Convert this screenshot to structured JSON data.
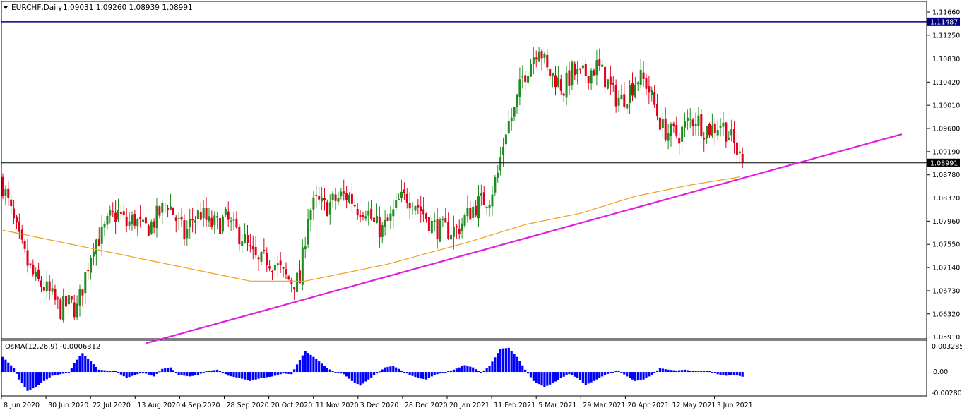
{
  "header": {
    "symbol_label": "EURCHF,Daily",
    "ohlc_label": "1.09031 1.09260 1.08939 1.08991"
  },
  "indicator": {
    "label": "OsMA(12,26,9) -0.0006312",
    "scale_top_label": "0.0032855",
    "scale_zero_label": "0.00",
    "scale_bottom_label": "-0.0028096"
  },
  "colors": {
    "bull_candle": "#1f8c1f",
    "bear_candle": "#e0001b",
    "ma_line": "#f0a020",
    "trendline": "#e020e0",
    "resistance_line": "#000080",
    "current_price_line": "#000000",
    "osma_bars": "#0000ff"
  },
  "chart_data": [
    {
      "type": "candlestick",
      "symbol": "EURCHF",
      "timeframe": "Daily",
      "x_axis_labels": [
        "8 Jun 2020",
        "30 Jun 2020",
        "22 Jul 2020",
        "13 Aug 2020",
        "4 Sep 2020",
        "28 Sep 2020",
        "20 Oct 2020",
        "11 Nov 2020",
        "3 Dec 2020",
        "28 Dec 2020",
        "20 Jan 2021",
        "11 Feb 2021",
        "5 Mar 2021",
        "29 Mar 2021",
        "20 Apr 2021",
        "12 May 2021",
        "3 Jun 2021"
      ],
      "y_axis_labels": [
        "1.11660",
        "1.11250",
        "1.10830",
        "1.10420",
        "1.10010",
        "1.09600",
        "1.09190",
        "1.08780",
        "1.08370",
        "1.07960",
        "1.07550",
        "1.07140",
        "1.06730",
        "1.06320",
        "1.05910"
      ],
      "y_range": [
        1.0591,
        1.1166
      ],
      "current_price": 1.08991,
      "current_price_label": "1.08991",
      "resistance_level": 1.11487,
      "resistance_label": "1.11487",
      "close_path": [
        [
          0,
          1.086
        ],
        [
          3,
          1.081
        ],
        [
          6,
          1.076
        ],
        [
          9,
          1.072
        ],
        [
          12,
          1.069
        ],
        [
          15,
          1.068
        ],
        [
          18,
          1.066
        ],
        [
          21,
          1.064
        ],
        [
          24,
          1.065
        ],
        [
          27,
          1.064
        ],
        [
          30,
          1.07
        ],
        [
          33,
          1.076
        ],
        [
          36,
          1.077
        ],
        [
          39,
          1.08
        ],
        [
          42,
          1.081
        ],
        [
          45,
          1.079
        ],
        [
          48,
          1.08
        ],
        [
          51,
          1.078
        ],
        [
          54,
          1.079
        ],
        [
          57,
          1.081
        ],
        [
          60,
          1.083
        ],
        [
          63,
          1.08
        ],
        [
          66,
          1.077
        ],
        [
          69,
          1.08
        ],
        [
          72,
          1.081
        ],
        [
          75,
          1.079
        ],
        [
          78,
          1.079
        ],
        [
          81,
          1.08
        ],
        [
          84,
          1.078
        ],
        [
          87,
          1.077
        ],
        [
          90,
          1.074
        ],
        [
          93,
          1.072
        ],
        [
          96,
          1.073
        ],
        [
          99,
          1.072
        ],
        [
          102,
          1.07
        ],
        [
          105,
          1.069
        ],
        [
          108,
          1.069
        ],
        [
          111,
          1.081
        ],
        [
          114,
          1.083
        ],
        [
          117,
          1.082
        ],
        [
          120,
          1.083
        ],
        [
          123,
          1.084
        ],
        [
          126,
          1.084
        ],
        [
          129,
          1.082
        ],
        [
          132,
          1.082
        ],
        [
          135,
          1.079
        ],
        [
          138,
          1.078
        ],
        [
          141,
          1.08
        ],
        [
          144,
          1.083
        ],
        [
          147,
          1.084
        ],
        [
          150,
          1.083
        ],
        [
          153,
          1.081
        ],
        [
          156,
          1.079
        ],
        [
          159,
          1.078
        ],
        [
          162,
          1.078
        ],
        [
          165,
          1.078
        ],
        [
          168,
          1.08
        ],
        [
          171,
          1.082
        ],
        [
          174,
          1.083
        ],
        [
          177,
          1.084
        ],
        [
          180,
          1.088
        ],
        [
          183,
          1.096
        ],
        [
          186,
          1.099
        ],
        [
          189,
          1.105
        ],
        [
          192,
          1.108
        ],
        [
          195,
          1.111
        ],
        [
          198,
          1.106
        ],
        [
          201,
          1.105
        ],
        [
          204,
          1.103
        ],
        [
          207,
          1.106
        ],
        [
          210,
          1.105
        ],
        [
          213,
          1.106
        ],
        [
          216,
          1.107
        ],
        [
          219,
          1.105
        ],
        [
          222,
          1.102
        ],
        [
          225,
          1.101
        ],
        [
          228,
          1.103
        ],
        [
          231,
          1.105
        ],
        [
          234,
          1.104
        ],
        [
          237,
          1.1
        ],
        [
          240,
          1.096
        ],
        [
          243,
          1.095
        ],
        [
          246,
          1.095
        ],
        [
          249,
          1.097
        ],
        [
          252,
          1.098
        ],
        [
          255,
          1.096
        ],
        [
          258,
          1.096
        ],
        [
          261,
          1.097
        ],
        [
          264,
          1.095
        ],
        [
          267,
          1.092
        ],
        [
          269,
          1.08991
        ]
      ],
      "moving_average_path": [
        [
          0,
          1.078
        ],
        [
          30,
          1.075
        ],
        [
          60,
          1.072
        ],
        [
          90,
          1.069
        ],
        [
          110,
          1.069
        ],
        [
          140,
          1.072
        ],
        [
          170,
          1.076
        ],
        [
          190,
          1.079
        ],
        [
          210,
          1.081
        ],
        [
          230,
          1.084
        ],
        [
          250,
          1.086
        ],
        [
          269,
          1.0875
        ]
      ],
      "trendline": [
        [
          52,
          1.058
        ],
        [
          327,
          1.095
        ]
      ]
    },
    {
      "type": "bar",
      "name": "OsMA(12,26,9)",
      "value": -0.0006312,
      "y_range": [
        -0.0028096,
        0.0032855
      ],
      "bar_path": [
        [
          0,
          0.002
        ],
        [
          4,
          0.0005
        ],
        [
          6,
          -0.001
        ],
        [
          9,
          -0.0025
        ],
        [
          12,
          -0.002
        ],
        [
          15,
          -0.0012
        ],
        [
          18,
          -0.0005
        ],
        [
          21,
          -0.0003
        ],
        [
          24,
          -0.0001
        ],
        [
          26,
          0.0012
        ],
        [
          29,
          0.0025
        ],
        [
          32,
          0.0014
        ],
        [
          35,
          0.0003
        ],
        [
          38,
          0.0002
        ],
        [
          41,
          0.0001
        ],
        [
          45,
          -0.0008
        ],
        [
          48,
          -0.0004
        ],
        [
          51,
          -0.0001
        ],
        [
          55,
          -0.0006
        ],
        [
          58,
          0.0004
        ],
        [
          61,
          0.0006
        ],
        [
          64,
          -0.0004
        ],
        [
          68,
          -0.0006
        ],
        [
          71,
          -0.0004
        ],
        [
          74,
          0.0001
        ],
        [
          78,
          0.0003
        ],
        [
          82,
          -0.0005
        ],
        [
          86,
          -0.0008
        ],
        [
          90,
          -0.0012
        ],
        [
          94,
          -0.0008
        ],
        [
          98,
          -0.0006
        ],
        [
          102,
          -0.0002
        ],
        [
          105,
          -0.0003
        ],
        [
          107,
          0.001
        ],
        [
          110,
          0.0028
        ],
        [
          113,
          0.002
        ],
        [
          117,
          0.0008
        ],
        [
          120,
          0.0001
        ],
        [
          124,
          -0.0003
        ],
        [
          127,
          -0.0012
        ],
        [
          130,
          -0.0018
        ],
        [
          133,
          -0.001
        ],
        [
          136,
          -0.0002
        ],
        [
          139,
          0.0006
        ],
        [
          142,
          0.0008
        ],
        [
          145,
          0.0002
        ],
        [
          148,
          -0.0004
        ],
        [
          151,
          -0.0008
        ],
        [
          154,
          -0.001
        ],
        [
          157,
          -0.0004
        ],
        [
          160,
          -0.0001
        ],
        [
          164,
          0.0003
        ],
        [
          168,
          0.0009
        ],
        [
          171,
          0.0006
        ],
        [
          174,
          -0.0001
        ],
        [
          177,
          0.0008
        ],
        [
          181,
          0.0031
        ],
        [
          184,
          0.0032
        ],
        [
          187,
          0.002
        ],
        [
          190,
          0.0003
        ],
        [
          193,
          -0.0012
        ],
        [
          197,
          -0.002
        ],
        [
          200,
          -0.0015
        ],
        [
          203,
          -0.0008
        ],
        [
          206,
          -0.0003
        ],
        [
          209,
          -0.0008
        ],
        [
          212,
          -0.0017
        ],
        [
          215,
          -0.0012
        ],
        [
          218,
          -0.0006
        ],
        [
          221,
          -0.0001
        ],
        [
          224,
          0.0002
        ],
        [
          227,
          -0.0006
        ],
        [
          230,
          -0.0012
        ],
        [
          233,
          -0.001
        ],
        [
          236,
          -0.0004
        ],
        [
          239,
          0.0005
        ],
        [
          242,
          0.0003
        ],
        [
          245,
          0.0002
        ],
        [
          248,
          0.0003
        ],
        [
          251,
          0.0001
        ],
        [
          254,
          0.0002
        ],
        [
          257,
          0.0001
        ],
        [
          260,
          -0.0003
        ],
        [
          263,
          -0.0005
        ],
        [
          266,
          -0.0004
        ],
        [
          269,
          -0.0006
        ]
      ]
    }
  ]
}
